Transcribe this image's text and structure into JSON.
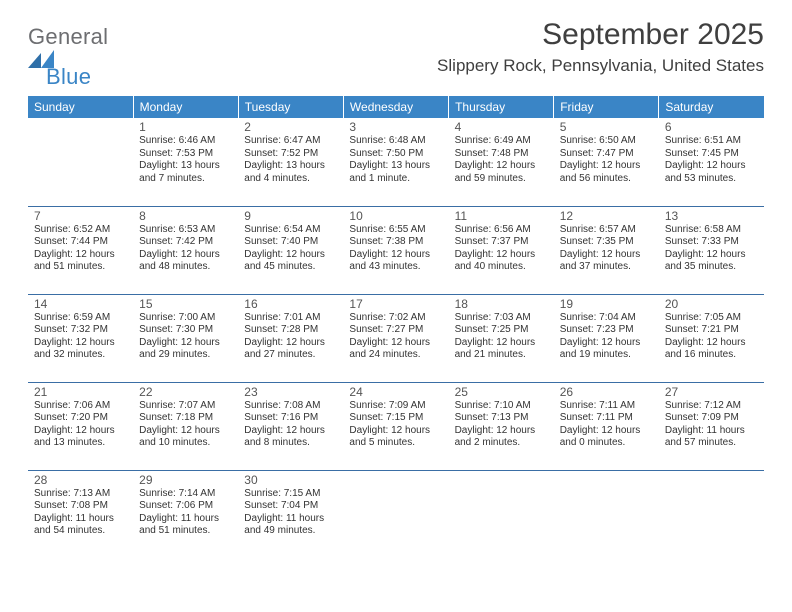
{
  "brand": {
    "word1": "General",
    "word2": "Blue",
    "color1": "#6d6e71",
    "color2": "#3a85c6"
  },
  "title": "September 2025",
  "location": "Slippery Rock, Pennsylvania, United States",
  "header_bg": "#3a85c6",
  "header_fg": "#ffffff",
  "row_border": "#3a6ea5",
  "text_color": "#333333",
  "daynum_color": "#555555",
  "weekdays": [
    "Sunday",
    "Monday",
    "Tuesday",
    "Wednesday",
    "Thursday",
    "Friday",
    "Saturday"
  ],
  "weeks": [
    [
      null,
      {
        "n": "1",
        "sr": "Sunrise: 6:46 AM",
        "ss": "Sunset: 7:53 PM",
        "d1": "Daylight: 13 hours",
        "d2": "and 7 minutes."
      },
      {
        "n": "2",
        "sr": "Sunrise: 6:47 AM",
        "ss": "Sunset: 7:52 PM",
        "d1": "Daylight: 13 hours",
        "d2": "and 4 minutes."
      },
      {
        "n": "3",
        "sr": "Sunrise: 6:48 AM",
        "ss": "Sunset: 7:50 PM",
        "d1": "Daylight: 13 hours",
        "d2": "and 1 minute."
      },
      {
        "n": "4",
        "sr": "Sunrise: 6:49 AM",
        "ss": "Sunset: 7:48 PM",
        "d1": "Daylight: 12 hours",
        "d2": "and 59 minutes."
      },
      {
        "n": "5",
        "sr": "Sunrise: 6:50 AM",
        "ss": "Sunset: 7:47 PM",
        "d1": "Daylight: 12 hours",
        "d2": "and 56 minutes."
      },
      {
        "n": "6",
        "sr": "Sunrise: 6:51 AM",
        "ss": "Sunset: 7:45 PM",
        "d1": "Daylight: 12 hours",
        "d2": "and 53 minutes."
      }
    ],
    [
      {
        "n": "7",
        "sr": "Sunrise: 6:52 AM",
        "ss": "Sunset: 7:44 PM",
        "d1": "Daylight: 12 hours",
        "d2": "and 51 minutes."
      },
      {
        "n": "8",
        "sr": "Sunrise: 6:53 AM",
        "ss": "Sunset: 7:42 PM",
        "d1": "Daylight: 12 hours",
        "d2": "and 48 minutes."
      },
      {
        "n": "9",
        "sr": "Sunrise: 6:54 AM",
        "ss": "Sunset: 7:40 PM",
        "d1": "Daylight: 12 hours",
        "d2": "and 45 minutes."
      },
      {
        "n": "10",
        "sr": "Sunrise: 6:55 AM",
        "ss": "Sunset: 7:38 PM",
        "d1": "Daylight: 12 hours",
        "d2": "and 43 minutes."
      },
      {
        "n": "11",
        "sr": "Sunrise: 6:56 AM",
        "ss": "Sunset: 7:37 PM",
        "d1": "Daylight: 12 hours",
        "d2": "and 40 minutes."
      },
      {
        "n": "12",
        "sr": "Sunrise: 6:57 AM",
        "ss": "Sunset: 7:35 PM",
        "d1": "Daylight: 12 hours",
        "d2": "and 37 minutes."
      },
      {
        "n": "13",
        "sr": "Sunrise: 6:58 AM",
        "ss": "Sunset: 7:33 PM",
        "d1": "Daylight: 12 hours",
        "d2": "and 35 minutes."
      }
    ],
    [
      {
        "n": "14",
        "sr": "Sunrise: 6:59 AM",
        "ss": "Sunset: 7:32 PM",
        "d1": "Daylight: 12 hours",
        "d2": "and 32 minutes."
      },
      {
        "n": "15",
        "sr": "Sunrise: 7:00 AM",
        "ss": "Sunset: 7:30 PM",
        "d1": "Daylight: 12 hours",
        "d2": "and 29 minutes."
      },
      {
        "n": "16",
        "sr": "Sunrise: 7:01 AM",
        "ss": "Sunset: 7:28 PM",
        "d1": "Daylight: 12 hours",
        "d2": "and 27 minutes."
      },
      {
        "n": "17",
        "sr": "Sunrise: 7:02 AM",
        "ss": "Sunset: 7:27 PM",
        "d1": "Daylight: 12 hours",
        "d2": "and 24 minutes."
      },
      {
        "n": "18",
        "sr": "Sunrise: 7:03 AM",
        "ss": "Sunset: 7:25 PM",
        "d1": "Daylight: 12 hours",
        "d2": "and 21 minutes."
      },
      {
        "n": "19",
        "sr": "Sunrise: 7:04 AM",
        "ss": "Sunset: 7:23 PM",
        "d1": "Daylight: 12 hours",
        "d2": "and 19 minutes."
      },
      {
        "n": "20",
        "sr": "Sunrise: 7:05 AM",
        "ss": "Sunset: 7:21 PM",
        "d1": "Daylight: 12 hours",
        "d2": "and 16 minutes."
      }
    ],
    [
      {
        "n": "21",
        "sr": "Sunrise: 7:06 AM",
        "ss": "Sunset: 7:20 PM",
        "d1": "Daylight: 12 hours",
        "d2": "and 13 minutes."
      },
      {
        "n": "22",
        "sr": "Sunrise: 7:07 AM",
        "ss": "Sunset: 7:18 PM",
        "d1": "Daylight: 12 hours",
        "d2": "and 10 minutes."
      },
      {
        "n": "23",
        "sr": "Sunrise: 7:08 AM",
        "ss": "Sunset: 7:16 PM",
        "d1": "Daylight: 12 hours",
        "d2": "and 8 minutes."
      },
      {
        "n": "24",
        "sr": "Sunrise: 7:09 AM",
        "ss": "Sunset: 7:15 PM",
        "d1": "Daylight: 12 hours",
        "d2": "and 5 minutes."
      },
      {
        "n": "25",
        "sr": "Sunrise: 7:10 AM",
        "ss": "Sunset: 7:13 PM",
        "d1": "Daylight: 12 hours",
        "d2": "and 2 minutes."
      },
      {
        "n": "26",
        "sr": "Sunrise: 7:11 AM",
        "ss": "Sunset: 7:11 PM",
        "d1": "Daylight: 12 hours",
        "d2": "and 0 minutes."
      },
      {
        "n": "27",
        "sr": "Sunrise: 7:12 AM",
        "ss": "Sunset: 7:09 PM",
        "d1": "Daylight: 11 hours",
        "d2": "and 57 minutes."
      }
    ],
    [
      {
        "n": "28",
        "sr": "Sunrise: 7:13 AM",
        "ss": "Sunset: 7:08 PM",
        "d1": "Daylight: 11 hours",
        "d2": "and 54 minutes."
      },
      {
        "n": "29",
        "sr": "Sunrise: 7:14 AM",
        "ss": "Sunset: 7:06 PM",
        "d1": "Daylight: 11 hours",
        "d2": "and 51 minutes."
      },
      {
        "n": "30",
        "sr": "Sunrise: 7:15 AM",
        "ss": "Sunset: 7:04 PM",
        "d1": "Daylight: 11 hours",
        "d2": "and 49 minutes."
      },
      null,
      null,
      null,
      null
    ]
  ]
}
